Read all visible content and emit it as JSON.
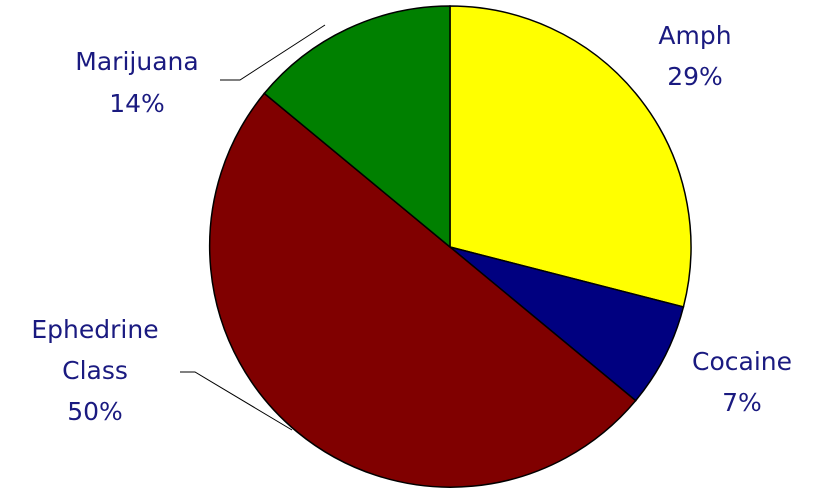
{
  "chart_data": {
    "type": "pie",
    "title": "",
    "slices": [
      {
        "label": "Amph",
        "value": 29,
        "value_label": "29%",
        "color": "#ffff00"
      },
      {
        "label": "Cocaine",
        "value": 7,
        "value_label": "7%",
        "color": "#000080"
      },
      {
        "label": "Ephedrine Class",
        "label_lines": [
          "Ephedrine",
          "Class"
        ],
        "value": 50,
        "value_label": "50%",
        "color": "#800000"
      },
      {
        "label": "Marijuana",
        "value": 14,
        "value_label": "14%",
        "color": "#008000"
      }
    ],
    "label_color": "#1a1a80",
    "legend": "none"
  }
}
